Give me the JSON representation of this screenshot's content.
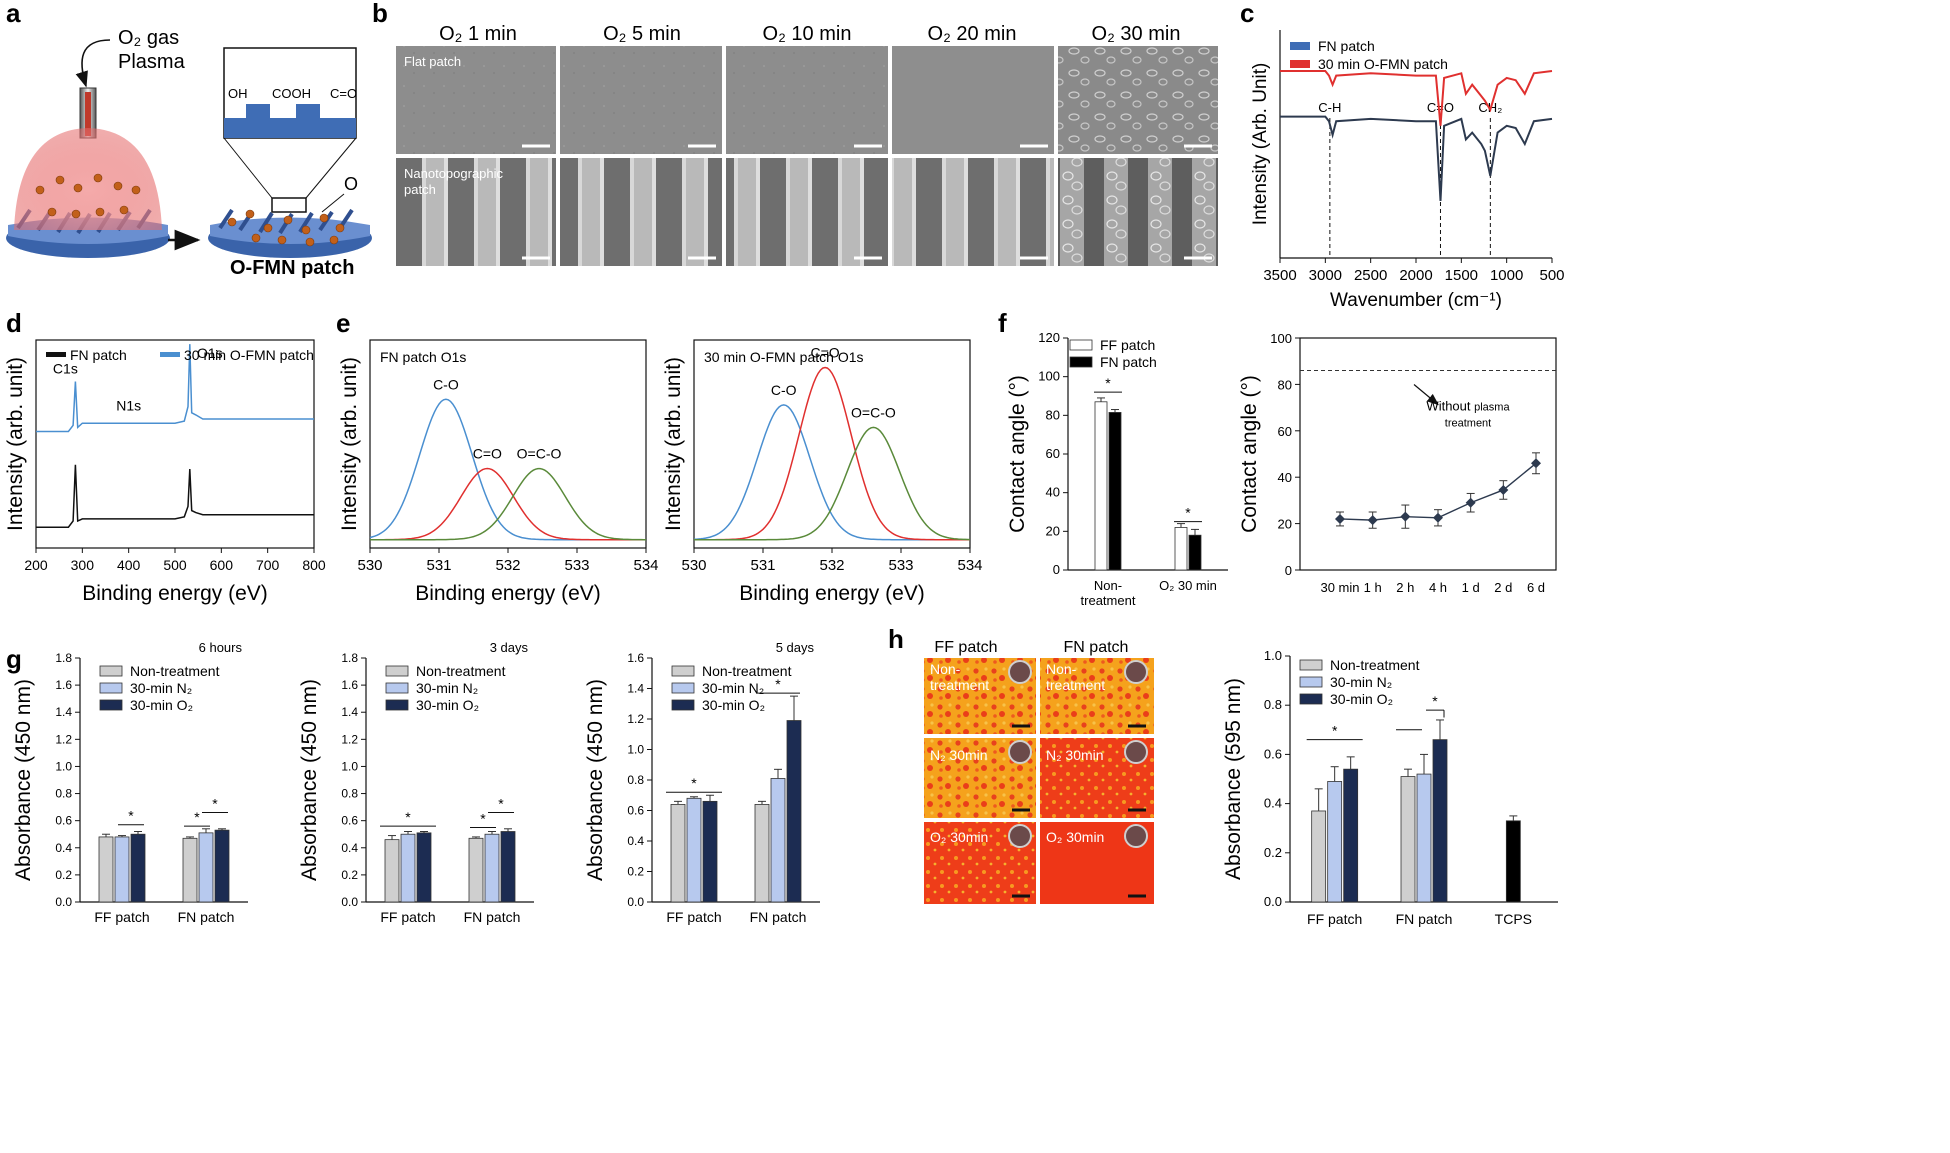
{
  "figure": {
    "panel_letters": [
      "a",
      "b",
      "c",
      "d",
      "e",
      "f",
      "g",
      "h"
    ],
    "colors": {
      "blue_patch": "#3f6db5",
      "red_line": "#e0302f",
      "dark_line": "#2d3a4f",
      "green_line": "#5a8a3a",
      "xps_blue": "#4a8fd0",
      "bar_gray": "#cfcfcf",
      "bar_lightblue": "#b7c9ee",
      "bar_navy": "#1c2c52",
      "orange_bg": "#ff8a1a"
    }
  },
  "panel_a": {
    "gas_label_line1": "O₂ gas",
    "gas_label_line2": "Plasma",
    "group_labels": [
      "OH",
      "COOH",
      "C=O"
    ],
    "o_label": "O",
    "patch_title": "O-FMN patch"
  },
  "panel_b": {
    "column_titles": [
      "O₂ 1 min",
      "O₂ 5 min",
      "O₂ 10 min",
      "O₂ 20 min",
      "O₂ 30 min"
    ],
    "row_labels": [
      "Flat patch",
      "Nanotopographic\npatch"
    ]
  },
  "chart_data": [
    {
      "panel": "c",
      "type": "line",
      "title": "",
      "xlabel": "Wavenumber (cm⁻¹)",
      "ylabel": "Intensity (Arb. Unit)",
      "xlim": [
        3500,
        500
      ],
      "x_ticks": [
        3500,
        3000,
        2500,
        2000,
        1500,
        1000,
        500
      ],
      "legend": [
        "FN patch",
        "30 min O-FMN patch"
      ],
      "annotations": [
        "C-H",
        "C=O",
        "CH₂"
      ],
      "annotation_positions": [
        2950,
        1730,
        1180
      ],
      "series": [
        {
          "name": "FN patch",
          "x": [
            3500,
            3000,
            2960,
            2920,
            2880,
            2500,
            2000,
            1780,
            1730,
            1690,
            1500,
            1450,
            1380,
            1280,
            1240,
            1180,
            1100,
            1000,
            900,
            800,
            700,
            500
          ],
          "values": [
            0.62,
            0.62,
            0.6,
            0.54,
            0.6,
            0.61,
            0.6,
            0.6,
            0.25,
            0.58,
            0.61,
            0.52,
            0.55,
            0.5,
            0.47,
            0.36,
            0.55,
            0.58,
            0.57,
            0.5,
            0.6,
            0.61
          ]
        },
        {
          "name": "30 min O-FMN patch",
          "x": [
            3500,
            3000,
            2960,
            2920,
            2880,
            2500,
            2000,
            1780,
            1730,
            1690,
            1500,
            1450,
            1380,
            1280,
            1240,
            1180,
            1100,
            1000,
            900,
            800,
            700,
            500
          ],
          "values": [
            0.82,
            0.82,
            0.8,
            0.76,
            0.8,
            0.81,
            0.8,
            0.8,
            0.58,
            0.79,
            0.81,
            0.72,
            0.76,
            0.71,
            0.69,
            0.65,
            0.76,
            0.79,
            0.78,
            0.72,
            0.81,
            0.82
          ]
        }
      ]
    },
    {
      "panel": "d",
      "type": "line",
      "xlabel": "Binding energy (eV)",
      "ylabel": "Intensity (arb. unit)",
      "xlim": [
        200,
        800
      ],
      "x_ticks": [
        200,
        300,
        400,
        500,
        600,
        700,
        800
      ],
      "legend": [
        "FN patch",
        "30 min O-FMN patch"
      ],
      "annotations": [
        "C1s",
        "N1s",
        "O1s"
      ],
      "annotation_positions": [
        285,
        400,
        532
      ],
      "series": [
        {
          "name": "FN patch",
          "x": [
            200,
            270,
            280,
            285,
            290,
            300,
            400,
            500,
            520,
            528,
            532,
            536,
            545,
            560,
            800
          ],
          "values": [
            0.1,
            0.1,
            0.13,
            0.4,
            0.13,
            0.14,
            0.14,
            0.14,
            0.15,
            0.2,
            0.38,
            0.18,
            0.17,
            0.16,
            0.16
          ]
        },
        {
          "name": "30 min O-FMN patch",
          "x": [
            200,
            270,
            280,
            285,
            290,
            300,
            400,
            500,
            520,
            528,
            532,
            536,
            545,
            560,
            800
          ],
          "values": [
            0.56,
            0.56,
            0.59,
            0.8,
            0.58,
            0.6,
            0.6,
            0.6,
            0.61,
            0.68,
            0.98,
            0.65,
            0.64,
            0.62,
            0.62
          ]
        }
      ]
    },
    {
      "panel": "e-left",
      "type": "line",
      "title": "FN patch O1s",
      "xlabel": "Binding energy (eV)",
      "ylabel": "Intensity (arb. unit)",
      "xlim": [
        530,
        534
      ],
      "x_ticks": [
        530,
        531,
        532,
        533,
        534
      ],
      "peaks": [
        {
          "name": "C-O",
          "center": 531.1,
          "height": 0.75
        },
        {
          "name": "C=O",
          "center": 531.7,
          "height": 0.38
        },
        {
          "name": "O=C-O",
          "center": 532.45,
          "height": 0.38
        }
      ]
    },
    {
      "panel": "e-right",
      "type": "line",
      "title": "30 min O-FMN patch O1s",
      "xlabel": "Binding energy (eV)",
      "ylabel": "Intensity (arb. unit)",
      "xlim": [
        530,
        534
      ],
      "x_ticks": [
        530,
        531,
        532,
        533,
        534
      ],
      "peaks": [
        {
          "name": "C-O",
          "center": 531.3,
          "height": 0.72
        },
        {
          "name": "C=O",
          "center": 531.9,
          "height": 0.92
        },
        {
          "name": "O=C-O",
          "center": 532.6,
          "height": 0.6
        }
      ]
    },
    {
      "panel": "f-left",
      "type": "bar",
      "ylabel": "Contact angle (°)",
      "ylim": [
        0,
        120
      ],
      "y_ticks": [
        0,
        20,
        40,
        60,
        80,
        100,
        120
      ],
      "categories": [
        "Non-\ntreatment",
        "O₂ 30 min"
      ],
      "series": [
        {
          "name": "FF patch",
          "values": [
            87,
            22
          ],
          "errors": [
            2,
            2
          ]
        },
        {
          "name": "FN patch",
          "values": [
            81.5,
            18
          ],
          "errors": [
            1.5,
            3
          ]
        }
      ],
      "significance": [
        "*",
        "*"
      ]
    },
    {
      "panel": "f-right",
      "type": "line",
      "ylabel": "Contact angle (°)",
      "ylim": [
        0,
        100
      ],
      "y_ticks": [
        0,
        20,
        40,
        60,
        80,
        100
      ],
      "categories": [
        "30 min",
        "1 h",
        "2 h",
        "4 h",
        "1 d",
        "2 d",
        "6 d"
      ],
      "values": [
        22,
        21.5,
        23,
        22.5,
        29,
        34.5,
        46
      ],
      "errors": [
        3,
        3.5,
        5,
        3.5,
        4,
        4,
        4.5
      ],
      "reference_line": 86,
      "reference_label_line1": "Without",
      "reference_label_word": "plasma",
      "reference_label_line2": "treatment"
    },
    {
      "panel": "g-1",
      "type": "bar",
      "title": "6 hours",
      "ylabel": "Absorbance (450 nm)",
      "ylim": [
        0,
        1.8
      ],
      "y_ticks": [
        0,
        0.2,
        0.4,
        0.6,
        0.8,
        1.0,
        1.2,
        1.4,
        1.6,
        1.8
      ],
      "categories": [
        "FF patch",
        "FN patch"
      ],
      "series": [
        {
          "name": "Non-treatment",
          "values": [
            0.48,
            0.47
          ],
          "errors": [
            0.02,
            0.01
          ]
        },
        {
          "name": "30-min N₂",
          "values": [
            0.48,
            0.51
          ],
          "errors": [
            0.01,
            0.03
          ]
        },
        {
          "name": "30-min O₂",
          "values": [
            0.5,
            0.53
          ],
          "errors": [
            0.02,
            0.01
          ]
        }
      ]
    },
    {
      "panel": "g-2",
      "type": "bar",
      "title": "3 days",
      "ylabel": "Absorbance (450 nm)",
      "ylim": [
        0,
        1.8
      ],
      "y_ticks": [
        0,
        0.2,
        0.4,
        0.6,
        0.8,
        1.0,
        1.2,
        1.4,
        1.6,
        1.8
      ],
      "categories": [
        "FF patch",
        "FN patch"
      ],
      "series": [
        {
          "name": "Non-treatment",
          "values": [
            0.46,
            0.47
          ],
          "errors": [
            0.03,
            0.01
          ]
        },
        {
          "name": "30-min N₂",
          "values": [
            0.5,
            0.5
          ],
          "errors": [
            0.02,
            0.02
          ]
        },
        {
          "name": "30-min O₂",
          "values": [
            0.51,
            0.52
          ],
          "errors": [
            0.01,
            0.02
          ]
        }
      ]
    },
    {
      "panel": "g-3",
      "type": "bar",
      "title": "5 days",
      "ylabel": "Absorbance (450 nm)",
      "ylim": [
        0,
        1.6
      ],
      "y_ticks": [
        0,
        0.2,
        0.4,
        0.6,
        0.8,
        1.0,
        1.2,
        1.4,
        1.6
      ],
      "categories": [
        "FF patch",
        "FN patch"
      ],
      "series": [
        {
          "name": "Non-treatment",
          "values": [
            0.64,
            0.64
          ],
          "errors": [
            0.02,
            0.02
          ]
        },
        {
          "name": "30-min N₂",
          "values": [
            0.68,
            0.81
          ],
          "errors": [
            0.01,
            0.06
          ]
        },
        {
          "name": "30-min O₂",
          "values": [
            0.66,
            1.19
          ],
          "errors": [
            0.04,
            0.16
          ]
        }
      ]
    },
    {
      "panel": "h-right",
      "type": "bar",
      "ylabel": "Absorbance (595 nm)",
      "ylim": [
        0,
        1.0
      ],
      "y_ticks": [
        0,
        0.2,
        0.4,
        0.6,
        0.8,
        1.0
      ],
      "categories": [
        "FF patch",
        "FN patch",
        "TCPS"
      ],
      "series": [
        {
          "name": "Non-treatment",
          "values": [
            0.37,
            0.51,
            null
          ],
          "errors": [
            0.09,
            0.03,
            null
          ]
        },
        {
          "name": "30-min N₂",
          "values": [
            0.49,
            0.52,
            null
          ],
          "errors": [
            0.06,
            0.08,
            null
          ]
        },
        {
          "name": "30-min O₂",
          "values": [
            0.54,
            0.66,
            null
          ],
          "errors": [
            0.05,
            0.08,
            null
          ]
        },
        {
          "name": "TCPS",
          "values": [
            null,
            null,
            0.33
          ],
          "errors": [
            null,
            null,
            0.02
          ]
        }
      ]
    }
  ],
  "panel_h_images": {
    "column_titles": [
      "FF patch",
      "FN patch"
    ],
    "row_labels": [
      "Non-\ntreatment",
      "N₂ 30min",
      "O₂ 30min"
    ]
  },
  "common": {
    "significance_star": "*",
    "g_legend": [
      "Non-treatment",
      "30-min N₂",
      "30-min O₂"
    ],
    "f_legend": [
      "FF patch",
      "FN patch"
    ]
  }
}
